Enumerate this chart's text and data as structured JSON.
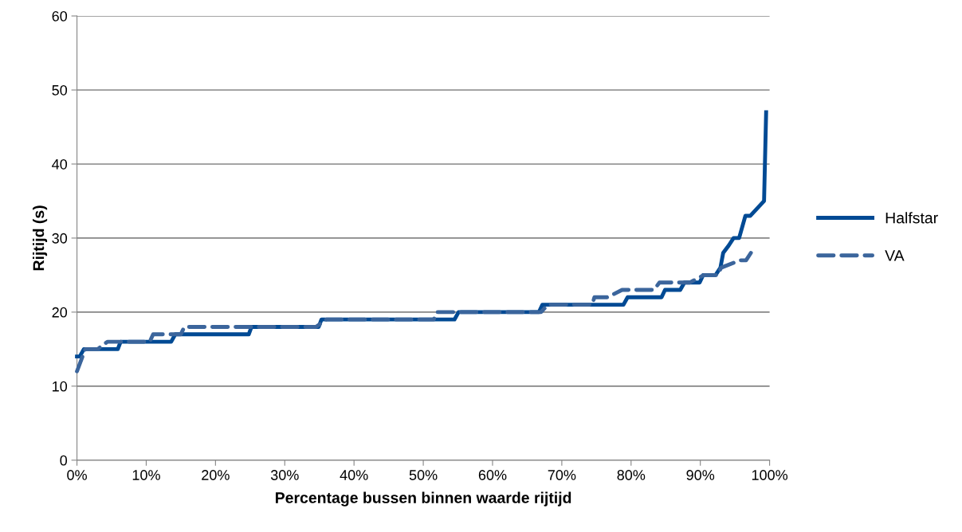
{
  "chart_data": {
    "type": "line",
    "xlabel": "Percentage bussen binnen waarde rijtijd",
    "ylabel": "Rijtijd (s)",
    "xlim": [
      0,
      100
    ],
    "ylim": [
      0,
      60
    ],
    "xticks": [
      {
        "value": 0,
        "label": "0%"
      },
      {
        "value": 10,
        "label": "10%"
      },
      {
        "value": 20,
        "label": "20%"
      },
      {
        "value": 30,
        "label": "30%"
      },
      {
        "value": 40,
        "label": "40%"
      },
      {
        "value": 50,
        "label": "50%"
      },
      {
        "value": 60,
        "label": "60%"
      },
      {
        "value": 70,
        "label": "70%"
      },
      {
        "value": 80,
        "label": "80%"
      },
      {
        "value": 90,
        "label": "90%"
      },
      {
        "value": 100,
        "label": "100%"
      }
    ],
    "yticks": [
      0,
      10,
      20,
      30,
      40,
      50,
      60
    ],
    "grid": "y",
    "legend": "right",
    "marker": "none",
    "series": [
      {
        "name": "Halfstar",
        "color": "#004a94",
        "line_style": "solid",
        "x": [
          0,
          0.4,
          1.0,
          5.9,
          6.3,
          13.6,
          14.2,
          24.8,
          25.2,
          34.9,
          35.3,
          54.5,
          55.1,
          66.7,
          67.2,
          78.9,
          79.5,
          84.4,
          84.9,
          87.1,
          87.7,
          89.9,
          90.4,
          92.2,
          92.9,
          93.3,
          94.1,
          94.8,
          95.6,
          96.5,
          97.2,
          99.2,
          99.5
        ],
        "values": [
          14,
          14,
          15,
          15,
          16,
          16,
          17,
          17,
          18,
          18,
          19,
          19,
          20,
          20,
          21,
          21,
          22,
          22,
          23,
          23,
          24,
          24,
          25,
          25,
          26,
          28,
          29,
          30,
          30,
          33,
          33,
          35,
          47
        ]
      },
      {
        "name": "VA",
        "color": "#3b659c",
        "line_style": "dashed",
        "x": [
          0,
          1.2,
          3.0,
          4.4,
          10.5,
          11.0,
          15.0,
          15.5,
          24.5,
          25.0,
          34.5,
          36.0,
          51.5,
          52.0,
          67.0,
          68.0,
          74.4,
          74.7,
          76.6,
          78.7,
          83.3,
          84.1,
          87.9,
          88.5,
          90.5,
          92.5,
          93.0,
          95.7,
          96.6,
          97.3
        ],
        "values": [
          12,
          15,
          15,
          16,
          16,
          17,
          17,
          18,
          18,
          18,
          18,
          19,
          19,
          20,
          20,
          21,
          21,
          22,
          22,
          23,
          23,
          24,
          24,
          24,
          25,
          25,
          26,
          27,
          27,
          28
        ]
      }
    ]
  }
}
